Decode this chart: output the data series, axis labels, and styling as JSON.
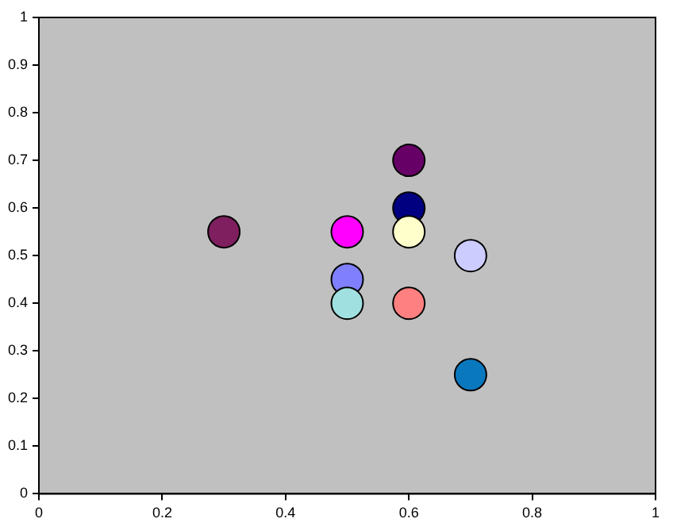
{
  "chart_data": {
    "type": "scatter",
    "marker": "circle",
    "grid": false,
    "legend": false,
    "x": [
      0.3,
      0.5,
      0.5,
      0.5,
      0.6,
      0.6,
      0.6,
      0.6,
      0.7,
      0.7
    ],
    "values": [
      0.55,
      0.55,
      0.45,
      0.4,
      0.7,
      0.6,
      0.55,
      0.4,
      0.5,
      0.25
    ],
    "colors": [
      "#7f1f5f",
      "#ff00ff",
      "#8080ff",
      "#a0e0e0",
      "#660066",
      "#000080",
      "#ffffcc",
      "#ff8080",
      "#ccccff",
      "#0a78be"
    ],
    "xlim": [
      0,
      1
    ],
    "xticks": [
      0,
      0.2,
      0.4,
      0.6,
      0.8,
      1
    ],
    "ylim": [
      0,
      1
    ],
    "yticks": [
      0,
      0.1,
      0.2,
      0.3,
      0.4,
      0.5,
      0.6,
      0.7,
      0.8,
      0.9,
      1
    ]
  }
}
